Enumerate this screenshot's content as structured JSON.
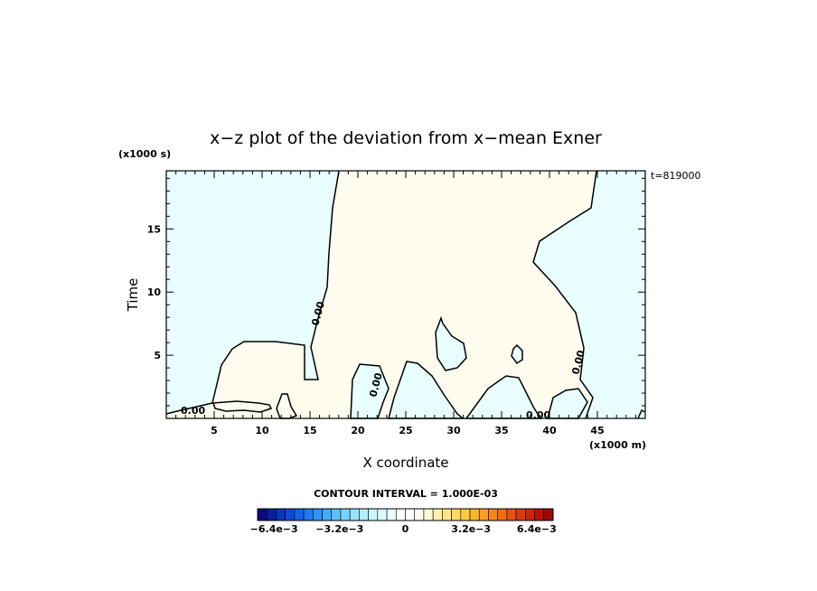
{
  "chart_data": {
    "type": "contour",
    "title": "x−z plot of the deviation from x−mean Exner",
    "xlabel": "X coordinate",
    "ylabel": "Time",
    "x_unit": "(x1000 m)",
    "y_unit": "(x1000 s)",
    "time_label": "t=819000",
    "xlim": [
      0,
      50
    ],
    "ylim": [
      0,
      19.6
    ],
    "x_ticks": [
      5,
      10,
      15,
      20,
      25,
      30,
      35,
      40,
      45
    ],
    "y_ticks": [
      5,
      10,
      15
    ],
    "contour_level_label": "0.00",
    "regions": [
      {
        "sign": "negative",
        "color": "#e8feff"
      },
      {
        "sign": "positive",
        "color": "#fdfcef"
      }
    ],
    "contour_interval_text": "CONTOUR INTERVAL = 1.000E-03",
    "colorbar": {
      "min": -0.0072,
      "max": 0.0072,
      "tick_labels": [
        "−6.4e−3",
        "−3.2e−3",
        "0",
        "3.2e−3",
        "6.4e−3"
      ],
      "tick_values": [
        -0.0064,
        -0.0032,
        0,
        0.0032,
        0.0064
      ]
    }
  }
}
